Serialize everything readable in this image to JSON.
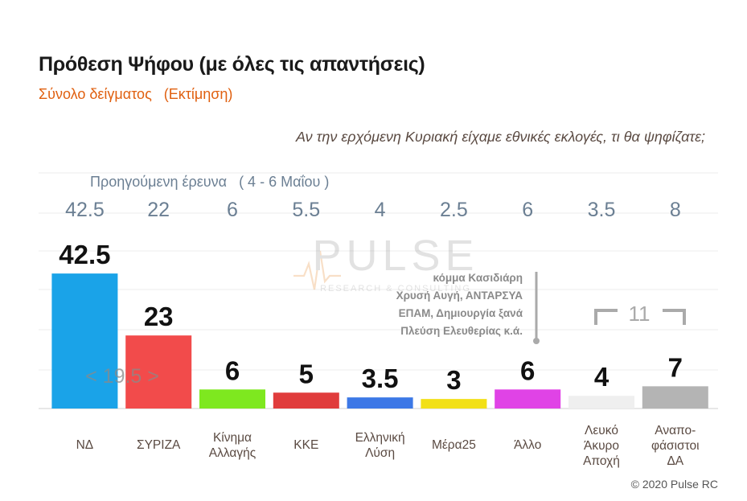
{
  "header": {
    "title": "Πρόθεση Ψήφου (με όλες τις απαντήσεις)",
    "subtitle": "Σύνολο δείγματος   (Εκτίμηση)",
    "question": "Αν την ερχόμενη Κυριακή είχαμε εθνικές εκλογές, τι θα ψηφίζατε;",
    "previous_caption": "Προηγούμενη έρευνα   ( 4 - 6 Μαΐου )"
  },
  "watermark": {
    "logo_text": "PULSE",
    "logo_subtext": "RESEARCH & CONSULTING"
  },
  "annotations": {
    "gap_label": "< 19.5 >",
    "other_parties_note": [
      "κόμμα Κασιδιάρη",
      "Χρυσή Αυγή, ΑΝΤΑΡΣΥΑ",
      "ΕΠΑΜ, Δημιουργία ξανά",
      "Πλεύση Ελευθερίας  κ.ά."
    ],
    "bracket_label": "11"
  },
  "credit": "© 2020 Pulse RC",
  "chart_data": {
    "type": "bar",
    "categories": [
      [
        "ΝΔ"
      ],
      [
        "ΣΥΡΙΖΑ"
      ],
      [
        "Κίνημα",
        "Αλλαγής"
      ],
      [
        "ΚΚΕ"
      ],
      [
        "Ελληνική",
        "Λύση"
      ],
      [
        "Μέρα25"
      ],
      [
        "Άλλο"
      ],
      [
        "Λευκό",
        "Άκυρο",
        "Αποχή"
      ],
      [
        "Αναπο-",
        "φάσιστοι",
        "ΔΑ"
      ]
    ],
    "values": [
      42.5,
      23,
      6,
      5,
      3.5,
      3,
      6,
      4,
      7
    ],
    "value_labels": [
      "42.5",
      "23",
      "6",
      "5",
      "3.5",
      "3",
      "6",
      "4",
      "7"
    ],
    "previous_values": [
      "42.5",
      "22",
      "6",
      "5.5",
      "4",
      "2.5",
      "6",
      "3.5",
      "8"
    ],
    "colors": [
      "#1aa3e8",
      "#f24b4b",
      "#7ee81f",
      "#e03c3c",
      "#3c78e6",
      "#f2e016",
      "#e043e6",
      "#efefef",
      "#b4b4b4"
    ],
    "ylim": [
      0,
      50
    ],
    "grid": true
  }
}
